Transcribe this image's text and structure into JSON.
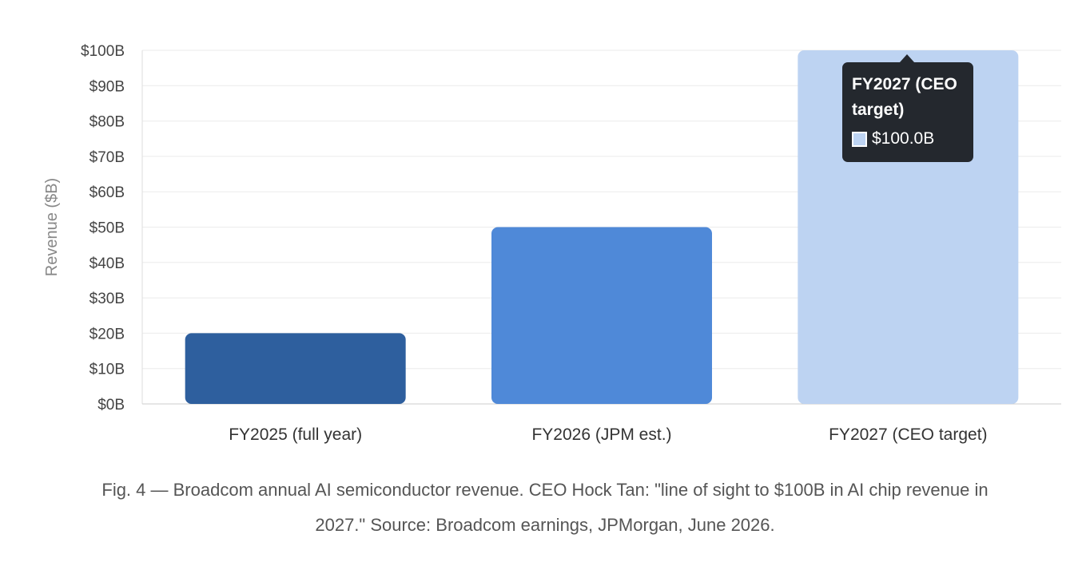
{
  "chart_data": {
    "type": "bar",
    "categories": [
      "FY2025 (full year)",
      "FY2026 (JPM est.)",
      "FY2027 (CEO target)"
    ],
    "values": [
      20,
      50,
      100
    ],
    "bar_colors": [
      "#2e5f9e",
      "#4f89d8",
      "#bdd3f2"
    ],
    "ylabel": "Revenue ($B)",
    "ylim": [
      0,
      100
    ],
    "yticks": [
      0,
      10,
      20,
      30,
      40,
      50,
      60,
      70,
      80,
      90,
      100
    ],
    "ytick_labels": [
      "$0B",
      "$10B",
      "$20B",
      "$30B",
      "$40B",
      "$50B",
      "$60B",
      "$70B",
      "$80B",
      "$90B",
      "$100B"
    ],
    "grid": true,
    "legend": "none",
    "tooltip": {
      "title": "FY2027 (CEO target)",
      "value_label": "$100.0B",
      "swatch_color": "#bdd3f2"
    }
  },
  "caption": {
    "line1": "Fig. 4 — Broadcom annual AI semiconductor revenue. CEO Hock Tan: \"line of sight to $100B in AI chip revenue in",
    "line2": "2027.\" Source: Broadcom earnings, JPMorgan, June 2026."
  }
}
